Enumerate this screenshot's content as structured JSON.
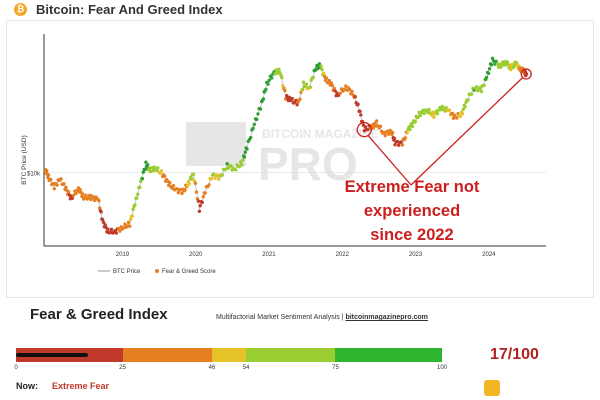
{
  "header": {
    "logo_glyph": "₿",
    "title": "Bitcoin: Fear And Greed Index"
  },
  "watermark": {
    "line1": "BITCOIN MAGAZINE",
    "line2": "PRO"
  },
  "annotation": {
    "lines": [
      "Extreme Fear not",
      "experienced",
      "since 2022"
    ],
    "color": "#cc1f1f"
  },
  "legend": {
    "price_label": "BTC Price",
    "score_label": "Fear & Greed Score"
  },
  "chart_data": {
    "type": "line",
    "ylabel": "BTC Price (USD)",
    "yticks": [
      "$10k"
    ],
    "xticks": [
      "2019",
      "2020",
      "2021",
      "2022",
      "2023",
      "2024"
    ],
    "yscale": "log",
    "xlim": [
      2018.08,
      2024.93
    ],
    "ylim": [
      2800,
      110000
    ],
    "grid": "horizontal",
    "series": [
      {
        "name": "BTC Price",
        "color_encodes": "Fear & Greed Score",
        "points": [
          [
            2018.1,
            10500,
            40
          ],
          [
            2018.15,
            9000,
            30
          ],
          [
            2018.22,
            7800,
            25
          ],
          [
            2018.3,
            8900,
            45
          ],
          [
            2018.38,
            7500,
            30
          ],
          [
            2018.45,
            6400,
            20
          ],
          [
            2018.55,
            7600,
            40
          ],
          [
            2018.62,
            6500,
            25
          ],
          [
            2018.72,
            6500,
            30
          ],
          [
            2018.82,
            6300,
            35
          ],
          [
            2018.88,
            4300,
            12
          ],
          [
            2018.95,
            3600,
            10
          ],
          [
            2019.05,
            3600,
            15
          ],
          [
            2019.15,
            3850,
            35
          ],
          [
            2019.25,
            4100,
            45
          ],
          [
            2019.32,
            5800,
            60
          ],
          [
            2019.4,
            8400,
            70
          ],
          [
            2019.47,
            11500,
            85
          ],
          [
            2019.52,
            10500,
            70
          ],
          [
            2019.6,
            10800,
            60
          ],
          [
            2019.7,
            9700,
            45
          ],
          [
            2019.78,
            8200,
            30
          ],
          [
            2019.88,
            7400,
            25
          ],
          [
            2019.98,
            7200,
            35
          ],
          [
            2020.05,
            8300,
            50
          ],
          [
            2020.12,
            9800,
            60
          ],
          [
            2020.2,
            5300,
            10
          ],
          [
            2020.28,
            7200,
            35
          ],
          [
            2020.38,
            9500,
            55
          ],
          [
            2020.48,
            9200,
            50
          ],
          [
            2020.58,
            11300,
            75
          ],
          [
            2020.68,
            10600,
            55
          ],
          [
            2020.78,
            11800,
            70
          ],
          [
            2020.85,
            15500,
            85
          ],
          [
            2020.95,
            23000,
            90
          ],
          [
            2021.05,
            33000,
            85
          ],
          [
            2021.12,
            46000,
            90
          ],
          [
            2021.22,
            57000,
            75
          ],
          [
            2021.3,
            58000,
            70
          ],
          [
            2021.38,
            37000,
            25
          ],
          [
            2021.45,
            35000,
            20
          ],
          [
            2021.55,
            33000,
            25
          ],
          [
            2021.62,
            46000,
            60
          ],
          [
            2021.7,
            43000,
            50
          ],
          [
            2021.78,
            60000,
            80
          ],
          [
            2021.85,
            64000,
            75
          ],
          [
            2021.92,
            50000,
            35
          ],
          [
            2022.0,
            46000,
            30
          ],
          [
            2022.08,
            38000,
            20
          ],
          [
            2022.2,
            44000,
            45
          ],
          [
            2022.3,
            39000,
            30
          ],
          [
            2022.38,
            30000,
            12
          ],
          [
            2022.45,
            21000,
            10
          ],
          [
            2022.55,
            22000,
            28
          ],
          [
            2022.62,
            23500,
            35
          ],
          [
            2022.72,
            19500,
            25
          ],
          [
            2022.82,
            20500,
            30
          ],
          [
            2022.87,
            16800,
            15
          ],
          [
            2022.97,
            16500,
            25
          ],
          [
            2023.05,
            21000,
            55
          ],
          [
            2023.12,
            23500,
            55
          ],
          [
            2023.2,
            27500,
            60
          ],
          [
            2023.3,
            29500,
            60
          ],
          [
            2023.4,
            27000,
            50
          ],
          [
            2023.5,
            30500,
            65
          ],
          [
            2023.6,
            29200,
            50
          ],
          [
            2023.68,
            26000,
            40
          ],
          [
            2023.78,
            27500,
            50
          ],
          [
            2023.85,
            35000,
            70
          ],
          [
            2023.95,
            43000,
            75
          ],
          [
            2024.05,
            42000,
            60
          ],
          [
            2024.12,
            52000,
            80
          ],
          [
            2024.2,
            70000,
            85
          ],
          [
            2024.3,
            63000,
            65
          ],
          [
            2024.38,
            68000,
            70
          ],
          [
            2024.45,
            61000,
            50
          ],
          [
            2024.52,
            66000,
            60
          ],
          [
            2024.58,
            59000,
            40
          ],
          [
            2024.63,
            58000,
            30
          ],
          [
            2024.66,
            55000,
            17
          ]
        ]
      }
    ],
    "score_colors": {
      "extreme_fear": "#c0392b",
      "fear": "#e67e22",
      "neutral": "#e6c229",
      "greed": "#9acd32",
      "extreme_greed": "#2e9e36"
    }
  },
  "gauge": {
    "title": "Fear & Greed Index",
    "subtitle": "Multifactorial Market Sentiment Analysis |",
    "site": "bitcoinmagazinepro.com",
    "segments": [
      {
        "from": 0,
        "to": 25,
        "color": "#c0392b"
      },
      {
        "from": 25,
        "to": 46,
        "color": "#e67e22"
      },
      {
        "from": 46,
        "to": 54,
        "color": "#e6c229"
      },
      {
        "from": 54,
        "to": 75,
        "color": "#9acd32"
      },
      {
        "from": 75,
        "to": 100,
        "color": "#2fb52f"
      }
    ],
    "ticks": [
      "0",
      "25",
      "46",
      "54",
      "75",
      "100"
    ],
    "value": 17,
    "score_text": "17/100",
    "now_label": "Now:",
    "now_value": "Extreme Fear"
  }
}
